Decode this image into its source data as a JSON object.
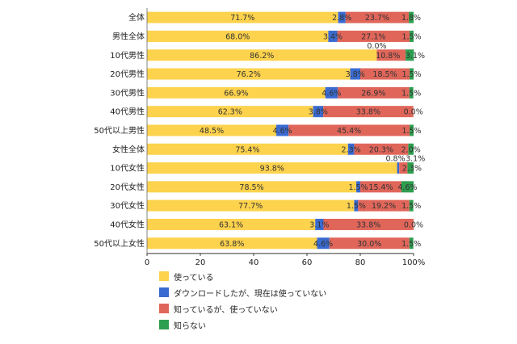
{
  "chart_data": {
    "type": "bar",
    "stacked": true,
    "orientation": "horizontal",
    "categories": [
      "全体",
      "男性全体",
      "10代男性",
      "20代男性",
      "30代男性",
      "40代男性",
      "50代以上男性",
      "女性全体",
      "10代女性",
      "20代女性",
      "30代女性",
      "40代女性",
      "50代以上女性"
    ],
    "series": [
      {
        "name": "使っている",
        "color": "#FDD24D",
        "values": [
          71.7,
          68.0,
          86.2,
          76.2,
          66.9,
          62.3,
          48.5,
          75.4,
          93.8,
          78.5,
          77.7,
          63.1,
          63.8
        ]
      },
      {
        "name": "ダウンロードしたが、現在は使っていない",
        "color": "#3A6BD1",
        "values": [
          2.8,
          3.4,
          0.0,
          3.8,
          4.6,
          3.8,
          4.6,
          2.3,
          0.8,
          1.5,
          1.5,
          3.1,
          4.6
        ]
      },
      {
        "name": "知っているが、使っていない",
        "color": "#E0665A",
        "values": [
          23.7,
          27.1,
          10.8,
          18.5,
          26.9,
          33.8,
          45.4,
          20.3,
          3.1,
          15.4,
          19.2,
          33.8,
          30.0
        ]
      },
      {
        "name": "知らない",
        "color": "#2E9E4F",
        "values": [
          1.8,
          1.5,
          3.1,
          1.5,
          1.5,
          0.0,
          1.5,
          2.0,
          2.3,
          4.6,
          1.5,
          0.0,
          1.5
        ]
      }
    ],
    "value_labels": [
      [
        "71.7%",
        "2.8%",
        "23.7%",
        "1.8%"
      ],
      [
        "68.0%",
        "3.4%",
        "27.1%",
        "1.5%"
      ],
      [
        "86.2%",
        "0.0%",
        "10.8%",
        "3.1%"
      ],
      [
        "76.2%",
        "3.8%",
        "18.5%",
        "1.5%"
      ],
      [
        "66.9%",
        "4.6%",
        "26.9%",
        "1.5%"
      ],
      [
        "62.3%",
        "3.8%",
        "33.8%",
        "0.0%"
      ],
      [
        "48.5%",
        "4.6%",
        "45.4%",
        "1.5%"
      ],
      [
        "75.4%",
        "2.3%",
        "20.3%",
        "2.0%"
      ],
      [
        "93.8%",
        "0.8%",
        "3.1%",
        "2.3%"
      ],
      [
        "78.5%",
        "1.5%",
        "15.4%",
        "4.6%"
      ],
      [
        "77.7%",
        "1.5%",
        "19.2%",
        "1.5%"
      ],
      [
        "63.1%",
        "3.1%",
        "33.8%",
        "0.0%"
      ],
      [
        "63.8%",
        "4.6%",
        "30.0%",
        "1.5%"
      ]
    ],
    "x_ticks": [
      "0",
      "20",
      "40",
      "60",
      "80",
      "100%"
    ],
    "xlim": [
      0,
      100
    ],
    "grid": false,
    "legend_position": "bottom-left"
  },
  "legend": [
    {
      "label": "使っている",
      "color": "#FDD24D"
    },
    {
      "label": "ダウンロードしたが、現在は使っていない",
      "color": "#3A6BD1"
    },
    {
      "label": "知っているが、使っていない",
      "color": "#E0665A"
    },
    {
      "label": "知らない",
      "color": "#2E9E4F"
    }
  ]
}
